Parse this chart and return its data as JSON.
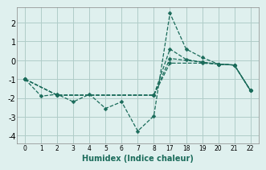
{
  "background_color": "#dff0ee",
  "grid_color": "#b0ccc8",
  "line_color": "#1a6b5a",
  "xlabel": "Humidex (Indice chaleur)",
  "x_labels": [
    0,
    1,
    2,
    3,
    4,
    5,
    6,
    7,
    8,
    17,
    18,
    19,
    20,
    21,
    22
  ],
  "ylim": [
    -4.4,
    2.8
  ],
  "yticks": [
    -4,
    -3,
    -2,
    -1,
    0,
    1,
    2
  ],
  "line1_xvals": [
    0,
    1,
    2,
    3,
    4,
    5,
    6,
    7,
    8,
    17,
    18,
    19,
    20,
    21,
    22
  ],
  "line1_y": [
    -1.0,
    -1.9,
    -1.8,
    -2.2,
    -1.8,
    -2.55,
    -2.2,
    -3.75,
    -2.95,
    2.5,
    0.6,
    0.15,
    -0.2,
    -0.25,
    -1.6
  ],
  "line2_xvals": [
    0,
    2,
    8,
    17,
    18,
    19,
    20,
    21,
    22
  ],
  "line2_y": [
    -1.0,
    -1.85,
    -1.85,
    0.6,
    0.05,
    -0.1,
    -0.2,
    -0.25,
    -1.6
  ],
  "line3_xvals": [
    0,
    2,
    8,
    17,
    19,
    20,
    21,
    22
  ],
  "line3_y": [
    -1.0,
    -1.85,
    -1.85,
    0.1,
    -0.1,
    -0.2,
    -0.25,
    -1.6
  ],
  "line4_xvals": [
    0,
    2,
    8,
    17,
    19,
    20,
    21,
    22
  ],
  "line4_y": [
    -1.0,
    -1.85,
    -1.85,
    -0.15,
    -0.15,
    -0.2,
    -0.25,
    -1.6
  ]
}
